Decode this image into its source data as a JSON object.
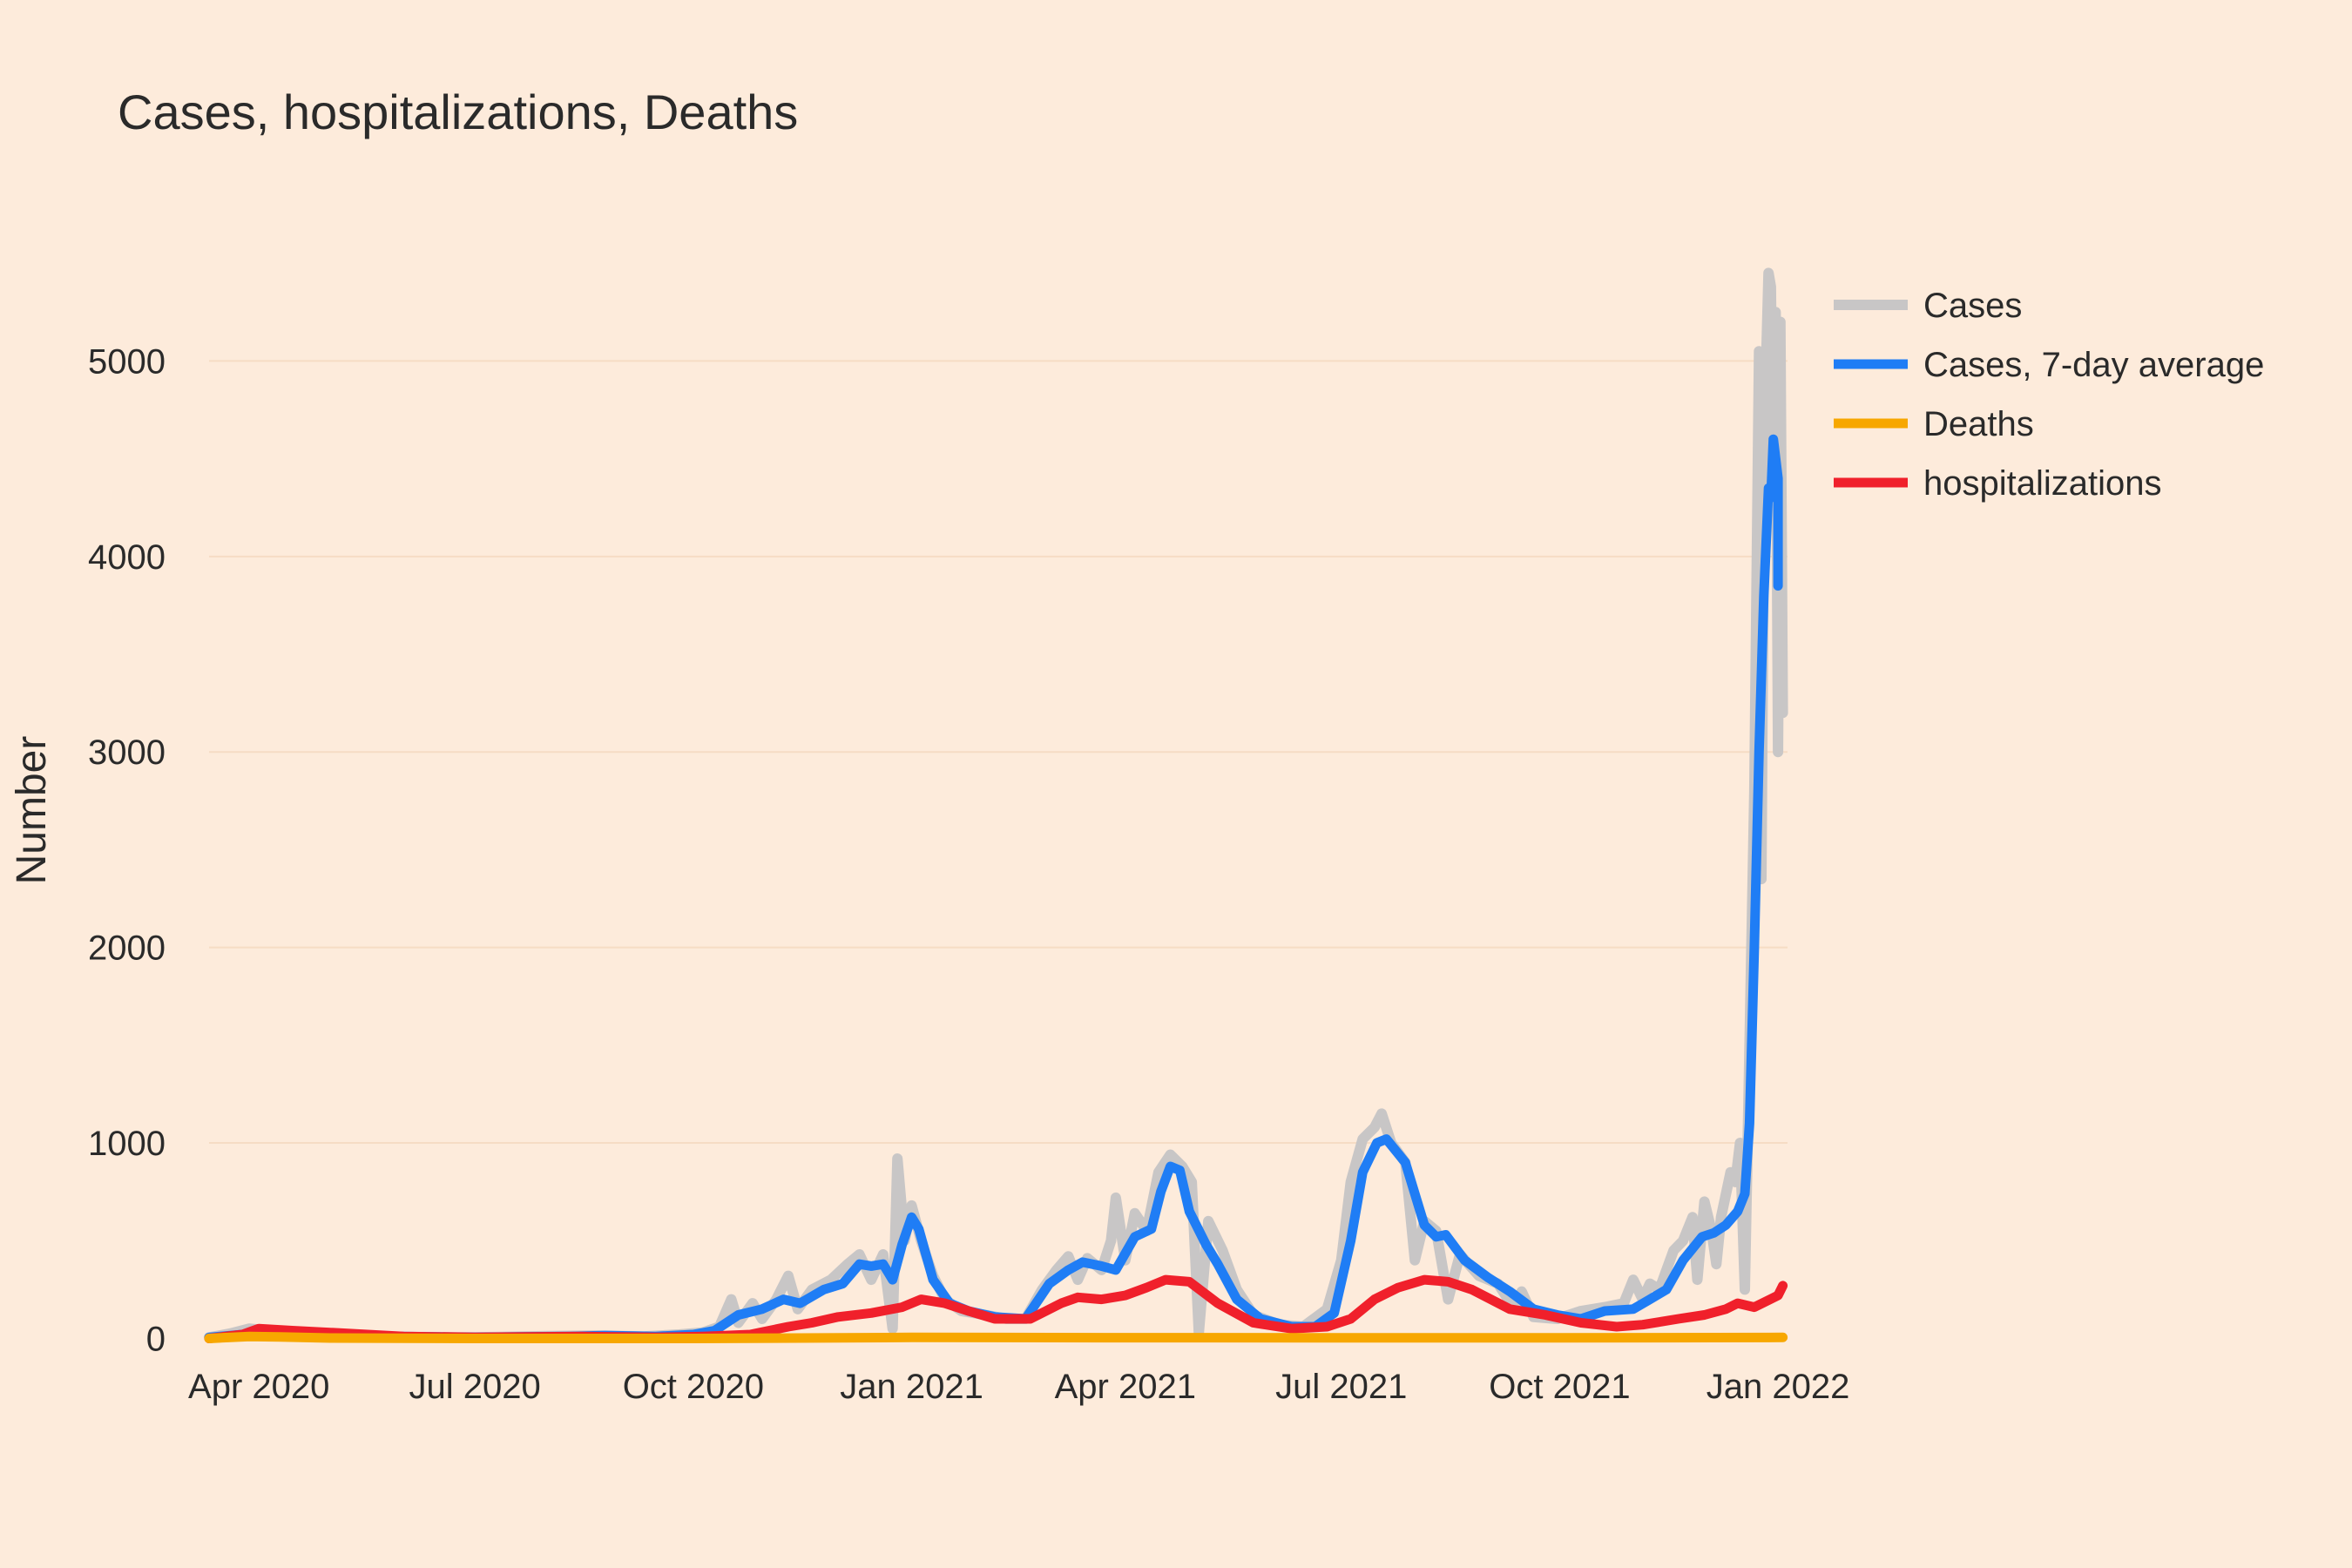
{
  "chart_data": {
    "type": "line",
    "title": "Cases, hospitalizations, Deaths",
    "xlabel": "",
    "ylabel": "Number",
    "xlim": [
      "2020-03-11",
      "2022-01-05"
    ],
    "ylim": [
      -350,
      6000
    ],
    "grid": true,
    "legend_position": "top-right",
    "background": "#fdebdb",
    "x_ticks": [
      {
        "date": "2020-04-01",
        "label": "Apr 2020"
      },
      {
        "date": "2020-07-01",
        "label": "Jul 2020"
      },
      {
        "date": "2020-10-01",
        "label": "Oct 2020"
      },
      {
        "date": "2021-01-01",
        "label": "Jan 2021"
      },
      {
        "date": "2021-04-01",
        "label": "Apr 2021"
      },
      {
        "date": "2021-07-01",
        "label": "Jul 2021"
      },
      {
        "date": "2021-10-01",
        "label": "Oct 2021"
      },
      {
        "date": "2022-01-01",
        "label": "Jan 2022"
      }
    ],
    "y_ticks": [
      0,
      1000,
      2000,
      3000,
      4000,
      5000
    ],
    "series": [
      {
        "name": "Cases",
        "color": "#c8c6c6",
        "width": 12,
        "points": [
          [
            "2020-03-11",
            5
          ],
          [
            "2020-03-20",
            25
          ],
          [
            "2020-03-28",
            50
          ],
          [
            "2020-04-05",
            40
          ],
          [
            "2020-04-20",
            25
          ],
          [
            "2020-05-10",
            12
          ],
          [
            "2020-06-01",
            8
          ],
          [
            "2020-07-01",
            5
          ],
          [
            "2020-08-01",
            12
          ],
          [
            "2020-08-20",
            15
          ],
          [
            "2020-09-10",
            10
          ],
          [
            "2020-09-25",
            20
          ],
          [
            "2020-10-05",
            30
          ],
          [
            "2020-10-12",
            60
          ],
          [
            "2020-10-17",
            200
          ],
          [
            "2020-10-20",
            80
          ],
          [
            "2020-10-26",
            180
          ],
          [
            "2020-10-30",
            100
          ],
          [
            "2020-11-05",
            200
          ],
          [
            "2020-11-10",
            320
          ],
          [
            "2020-11-14",
            150
          ],
          [
            "2020-11-20",
            250
          ],
          [
            "2020-11-28",
            300
          ],
          [
            "2020-12-05",
            380
          ],
          [
            "2020-12-10",
            430
          ],
          [
            "2020-12-15",
            300
          ],
          [
            "2020-12-20",
            430
          ],
          [
            "2020-12-24",
            50
          ],
          [
            "2020-12-26",
            920
          ],
          [
            "2020-12-29",
            500
          ],
          [
            "2021-01-01",
            680
          ],
          [
            "2021-01-05",
            500
          ],
          [
            "2021-01-10",
            320
          ],
          [
            "2021-01-15",
            200
          ],
          [
            "2021-01-22",
            140
          ],
          [
            "2021-02-01",
            120
          ],
          [
            "2021-02-10",
            100
          ],
          [
            "2021-02-18",
            100
          ],
          [
            "2021-02-25",
            250
          ],
          [
            "2021-03-03",
            350
          ],
          [
            "2021-03-08",
            420
          ],
          [
            "2021-03-12",
            300
          ],
          [
            "2021-03-16",
            410
          ],
          [
            "2021-03-22",
            350
          ],
          [
            "2021-03-26",
            500
          ],
          [
            "2021-03-28",
            720
          ],
          [
            "2021-04-01",
            400
          ],
          [
            "2021-04-05",
            640
          ],
          [
            "2021-04-10",
            550
          ],
          [
            "2021-04-15",
            850
          ],
          [
            "2021-04-20",
            940
          ],
          [
            "2021-04-25",
            880
          ],
          [
            "2021-04-29",
            800
          ],
          [
            "2021-05-02",
            30
          ],
          [
            "2021-05-06",
            600
          ],
          [
            "2021-05-12",
            450
          ],
          [
            "2021-05-18",
            250
          ],
          [
            "2021-05-25",
            120
          ],
          [
            "2021-06-05",
            70
          ],
          [
            "2021-06-15",
            60
          ],
          [
            "2021-06-25",
            150
          ],
          [
            "2021-07-01",
            400
          ],
          [
            "2021-07-05",
            800
          ],
          [
            "2021-07-10",
            1020
          ],
          [
            "2021-07-15",
            1080
          ],
          [
            "2021-07-18",
            1150
          ],
          [
            "2021-07-22",
            1000
          ],
          [
            "2021-07-28",
            900
          ],
          [
            "2021-08-01",
            400
          ],
          [
            "2021-08-05",
            600
          ],
          [
            "2021-08-10",
            550
          ],
          [
            "2021-08-15",
            200
          ],
          [
            "2021-08-20",
            430
          ],
          [
            "2021-08-28",
            320
          ],
          [
            "2021-09-05",
            280
          ],
          [
            "2021-09-12",
            150
          ],
          [
            "2021-09-15",
            240
          ],
          [
            "2021-09-20",
            110
          ],
          [
            "2021-09-30",
            100
          ],
          [
            "2021-10-10",
            140
          ],
          [
            "2021-10-20",
            160
          ],
          [
            "2021-10-28",
            180
          ],
          [
            "2021-11-01",
            300
          ],
          [
            "2021-11-05",
            200
          ],
          [
            "2021-11-08",
            280
          ],
          [
            "2021-11-12",
            250
          ],
          [
            "2021-11-18",
            450
          ],
          [
            "2021-11-22",
            500
          ],
          [
            "2021-11-26",
            620
          ],
          [
            "2021-11-28",
            300
          ],
          [
            "2021-12-01",
            700
          ],
          [
            "2021-12-04",
            550
          ],
          [
            "2021-12-06",
            380
          ],
          [
            "2021-12-08",
            620
          ],
          [
            "2021-12-12",
            850
          ],
          [
            "2021-12-14",
            800
          ],
          [
            "2021-12-16",
            1000
          ],
          [
            "2021-12-18",
            250
          ],
          [
            "2021-12-20",
            1500
          ],
          [
            "2021-12-22",
            2800
          ],
          [
            "2021-12-24",
            5050
          ],
          [
            "2021-12-25",
            2350
          ],
          [
            "2021-12-26",
            4200
          ],
          [
            "2021-12-27",
            5000
          ],
          [
            "2021-12-28",
            5450
          ],
          [
            "2021-12-29",
            5380
          ],
          [
            "2021-12-30",
            4200
          ],
          [
            "2021-12-31",
            5250
          ],
          [
            "2022-01-01",
            3000
          ],
          [
            "2022-01-02",
            5200
          ],
          [
            "2022-01-03",
            3200
          ]
        ]
      },
      {
        "name": "Cases, 7-day average",
        "color": "#1f7df5",
        "width": 11,
        "points": [
          [
            "2020-03-11",
            5
          ],
          [
            "2020-03-25",
            20
          ],
          [
            "2020-04-05",
            35
          ],
          [
            "2020-04-20",
            25
          ],
          [
            "2020-05-15",
            12
          ],
          [
            "2020-07-01",
            5
          ],
          [
            "2020-08-10",
            10
          ],
          [
            "2020-08-25",
            15
          ],
          [
            "2020-09-15",
            10
          ],
          [
            "2020-10-01",
            20
          ],
          [
            "2020-10-10",
            40
          ],
          [
            "2020-10-20",
            120
          ],
          [
            "2020-10-30",
            150
          ],
          [
            "2020-11-08",
            200
          ],
          [
            "2020-11-15",
            180
          ],
          [
            "2020-11-25",
            250
          ],
          [
            "2020-12-03",
            280
          ],
          [
            "2020-12-10",
            380
          ],
          [
            "2020-12-15",
            370
          ],
          [
            "2020-12-20",
            380
          ],
          [
            "2020-12-24",
            300
          ],
          [
            "2020-12-28",
            480
          ],
          [
            "2021-01-01",
            620
          ],
          [
            "2021-01-04",
            560
          ],
          [
            "2021-01-10",
            300
          ],
          [
            "2021-01-17",
            180
          ],
          [
            "2021-01-25",
            140
          ],
          [
            "2021-02-05",
            110
          ],
          [
            "2021-02-18",
            100
          ],
          [
            "2021-02-28",
            280
          ],
          [
            "2021-03-08",
            350
          ],
          [
            "2021-03-14",
            390
          ],
          [
            "2021-03-22",
            370
          ],
          [
            "2021-03-28",
            350
          ],
          [
            "2021-04-05",
            520
          ],
          [
            "2021-04-12",
            560
          ],
          [
            "2021-04-16",
            750
          ],
          [
            "2021-04-20",
            880
          ],
          [
            "2021-04-24",
            860
          ],
          [
            "2021-04-28",
            650
          ],
          [
            "2021-05-05",
            480
          ],
          [
            "2021-05-10",
            380
          ],
          [
            "2021-05-18",
            200
          ],
          [
            "2021-05-28",
            100
          ],
          [
            "2021-06-10",
            60
          ],
          [
            "2021-06-20",
            60
          ],
          [
            "2021-06-28",
            130
          ],
          [
            "2021-07-05",
            500
          ],
          [
            "2021-07-10",
            850
          ],
          [
            "2021-07-16",
            1000
          ],
          [
            "2021-07-20",
            1020
          ],
          [
            "2021-07-28",
            900
          ],
          [
            "2021-08-05",
            580
          ],
          [
            "2021-08-10",
            520
          ],
          [
            "2021-08-14",
            530
          ],
          [
            "2021-08-22",
            400
          ],
          [
            "2021-09-01",
            310
          ],
          [
            "2021-09-10",
            240
          ],
          [
            "2021-09-20",
            150
          ],
          [
            "2021-09-30",
            120
          ],
          [
            "2021-10-10",
            100
          ],
          [
            "2021-10-20",
            140
          ],
          [
            "2021-11-01",
            150
          ],
          [
            "2021-11-08",
            200
          ],
          [
            "2021-11-15",
            250
          ],
          [
            "2021-11-22",
            400
          ],
          [
            "2021-11-30",
            520
          ],
          [
            "2021-12-05",
            540
          ],
          [
            "2021-12-10",
            580
          ],
          [
            "2021-12-15",
            650
          ],
          [
            "2021-12-18",
            740
          ],
          [
            "2021-12-20",
            1100
          ],
          [
            "2021-12-22",
            2000
          ],
          [
            "2021-12-24",
            3000
          ],
          [
            "2021-12-26",
            3800
          ],
          [
            "2021-12-28",
            4350
          ],
          [
            "2021-12-29",
            4300
          ],
          [
            "2021-12-30",
            4600
          ],
          [
            "2022-01-01",
            4400
          ],
          [
            "2022-01-01",
            3850
          ]
        ]
      },
      {
        "name": "Deaths",
        "color": "#f7a700",
        "width": 11,
        "points": [
          [
            "2020-03-11",
            0
          ],
          [
            "2020-03-28",
            10
          ],
          [
            "2020-04-10",
            8
          ],
          [
            "2020-05-01",
            2
          ],
          [
            "2020-07-01",
            0
          ],
          [
            "2020-10-01",
            0
          ],
          [
            "2020-11-15",
            2
          ],
          [
            "2021-01-01",
            5
          ],
          [
            "2021-04-01",
            4
          ],
          [
            "2021-07-01",
            3
          ],
          [
            "2021-10-01",
            3
          ],
          [
            "2022-01-03",
            5
          ]
        ]
      },
      {
        "name": "hospitalizations",
        "color": "#f0202b",
        "width": 11,
        "points": [
          [
            "2020-03-11",
            0
          ],
          [
            "2020-03-25",
            20
          ],
          [
            "2020-04-01",
            50
          ],
          [
            "2020-04-15",
            40
          ],
          [
            "2020-05-01",
            30
          ],
          [
            "2020-06-01",
            10
          ],
          [
            "2020-07-01",
            5
          ],
          [
            "2020-08-15",
            10
          ],
          [
            "2020-09-15",
            5
          ],
          [
            "2020-10-05",
            10
          ],
          [
            "2020-10-25",
            20
          ],
          [
            "2020-11-10",
            60
          ],
          [
            "2020-11-20",
            80
          ],
          [
            "2020-12-01",
            110
          ],
          [
            "2020-12-15",
            130
          ],
          [
            "2020-12-28",
            160
          ],
          [
            "2021-01-05",
            200
          ],
          [
            "2021-01-15",
            180
          ],
          [
            "2021-01-25",
            140
          ],
          [
            "2021-02-05",
            100
          ],
          [
            "2021-02-20",
            100
          ],
          [
            "2021-03-05",
            180
          ],
          [
            "2021-03-12",
            210
          ],
          [
            "2021-03-22",
            200
          ],
          [
            "2021-04-01",
            220
          ],
          [
            "2021-04-10",
            260
          ],
          [
            "2021-04-18",
            300
          ],
          [
            "2021-04-28",
            290
          ],
          [
            "2021-05-10",
            180
          ],
          [
            "2021-05-25",
            80
          ],
          [
            "2021-06-10",
            50
          ],
          [
            "2021-06-25",
            60
          ],
          [
            "2021-07-05",
            100
          ],
          [
            "2021-07-15",
            200
          ],
          [
            "2021-07-25",
            260
          ],
          [
            "2021-08-05",
            300
          ],
          [
            "2021-08-15",
            290
          ],
          [
            "2021-08-25",
            250
          ],
          [
            "2021-09-10",
            150
          ],
          [
            "2021-09-25",
            120
          ],
          [
            "2021-10-10",
            80
          ],
          [
            "2021-10-25",
            60
          ],
          [
            "2021-11-05",
            70
          ],
          [
            "2021-11-20",
            100
          ],
          [
            "2021-12-01",
            120
          ],
          [
            "2021-12-10",
            150
          ],
          [
            "2021-12-15",
            180
          ],
          [
            "2021-12-22",
            160
          ],
          [
            "2022-01-01",
            220
          ],
          [
            "2022-01-03",
            270
          ]
        ]
      }
    ]
  }
}
